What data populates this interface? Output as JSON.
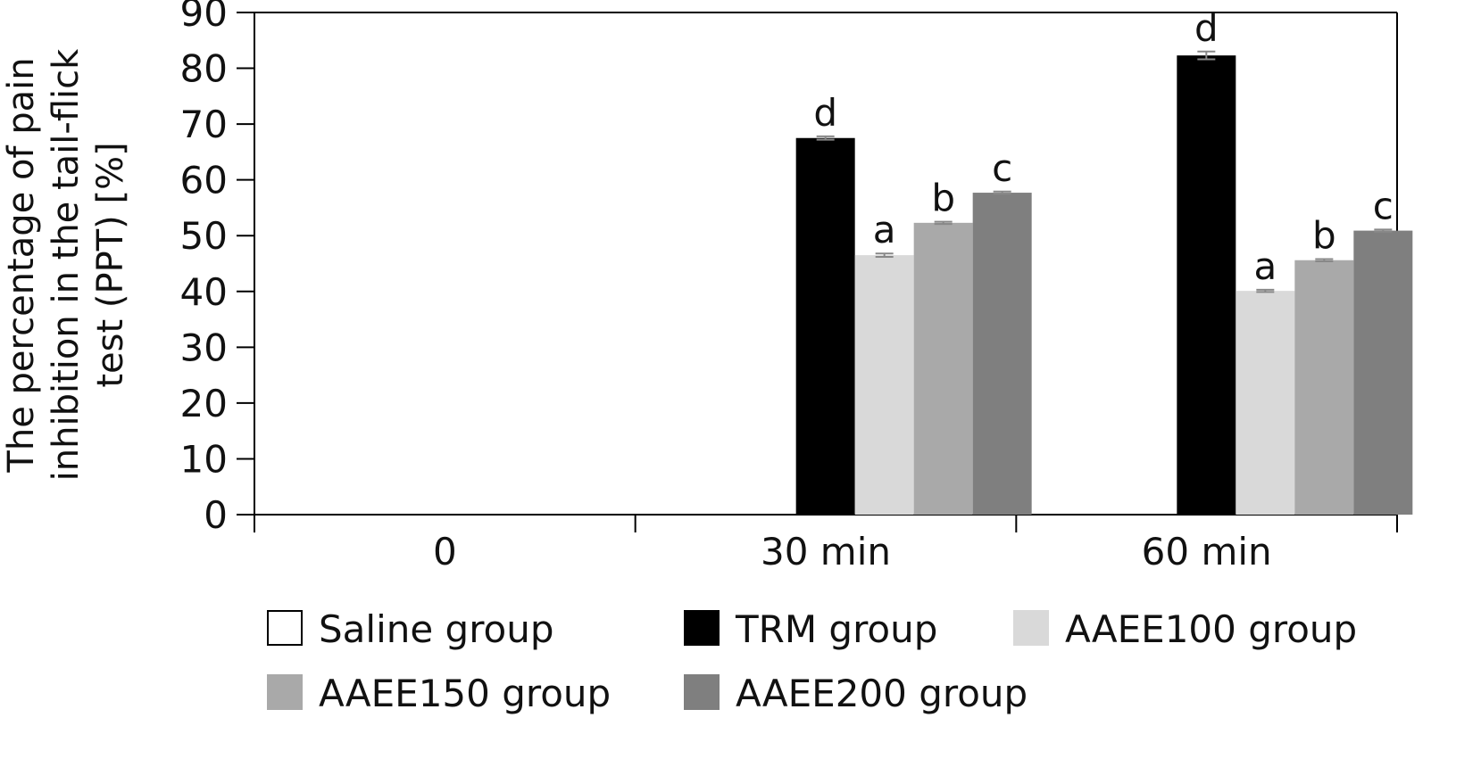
{
  "chart_data": {
    "type": "bar",
    "title": "",
    "xlabel": "",
    "ylabel_lines": [
      "The percentage of pain",
      "inhibition in the tail-flick",
      "test (PPT) [%]"
    ],
    "ylim": [
      0,
      90
    ],
    "yticks": [
      0,
      10,
      20,
      30,
      40,
      50,
      60,
      70,
      80,
      90
    ],
    "categories": [
      "0",
      "30 min",
      "60 min"
    ],
    "grid": false,
    "legend_position": "bottom",
    "series": [
      {
        "name": "Saline group",
        "color": "#ffffff",
        "values": [
          0,
          0,
          0
        ],
        "errors": [
          0,
          0,
          0
        ],
        "sig": [
          "",
          "",
          ""
        ]
      },
      {
        "name": "TRM group",
        "color": "#000000",
        "values": [
          0,
          67.5,
          82.3
        ],
        "errors": [
          0,
          0.3,
          0.7
        ],
        "sig": [
          "",
          "d",
          "d"
        ]
      },
      {
        "name": "AAEE100 group",
        "color": "#d9d9d9",
        "values": [
          0,
          46.5,
          40.1
        ],
        "errors": [
          0,
          0.3,
          0.2
        ],
        "sig": [
          "",
          "a",
          "a"
        ]
      },
      {
        "name": "AAEE150 group",
        "color": "#a9a9a9",
        "values": [
          0,
          52.3,
          45.6
        ],
        "errors": [
          0,
          0.2,
          0.2
        ],
        "sig": [
          "",
          "b",
          "b"
        ]
      },
      {
        "name": "AAEE200 group",
        "color": "#7f7f7f",
        "values": [
          0,
          57.7,
          50.9
        ],
        "errors": [
          0,
          0.2,
          0.2
        ],
        "sig": [
          "",
          "c",
          "c"
        ]
      }
    ]
  }
}
